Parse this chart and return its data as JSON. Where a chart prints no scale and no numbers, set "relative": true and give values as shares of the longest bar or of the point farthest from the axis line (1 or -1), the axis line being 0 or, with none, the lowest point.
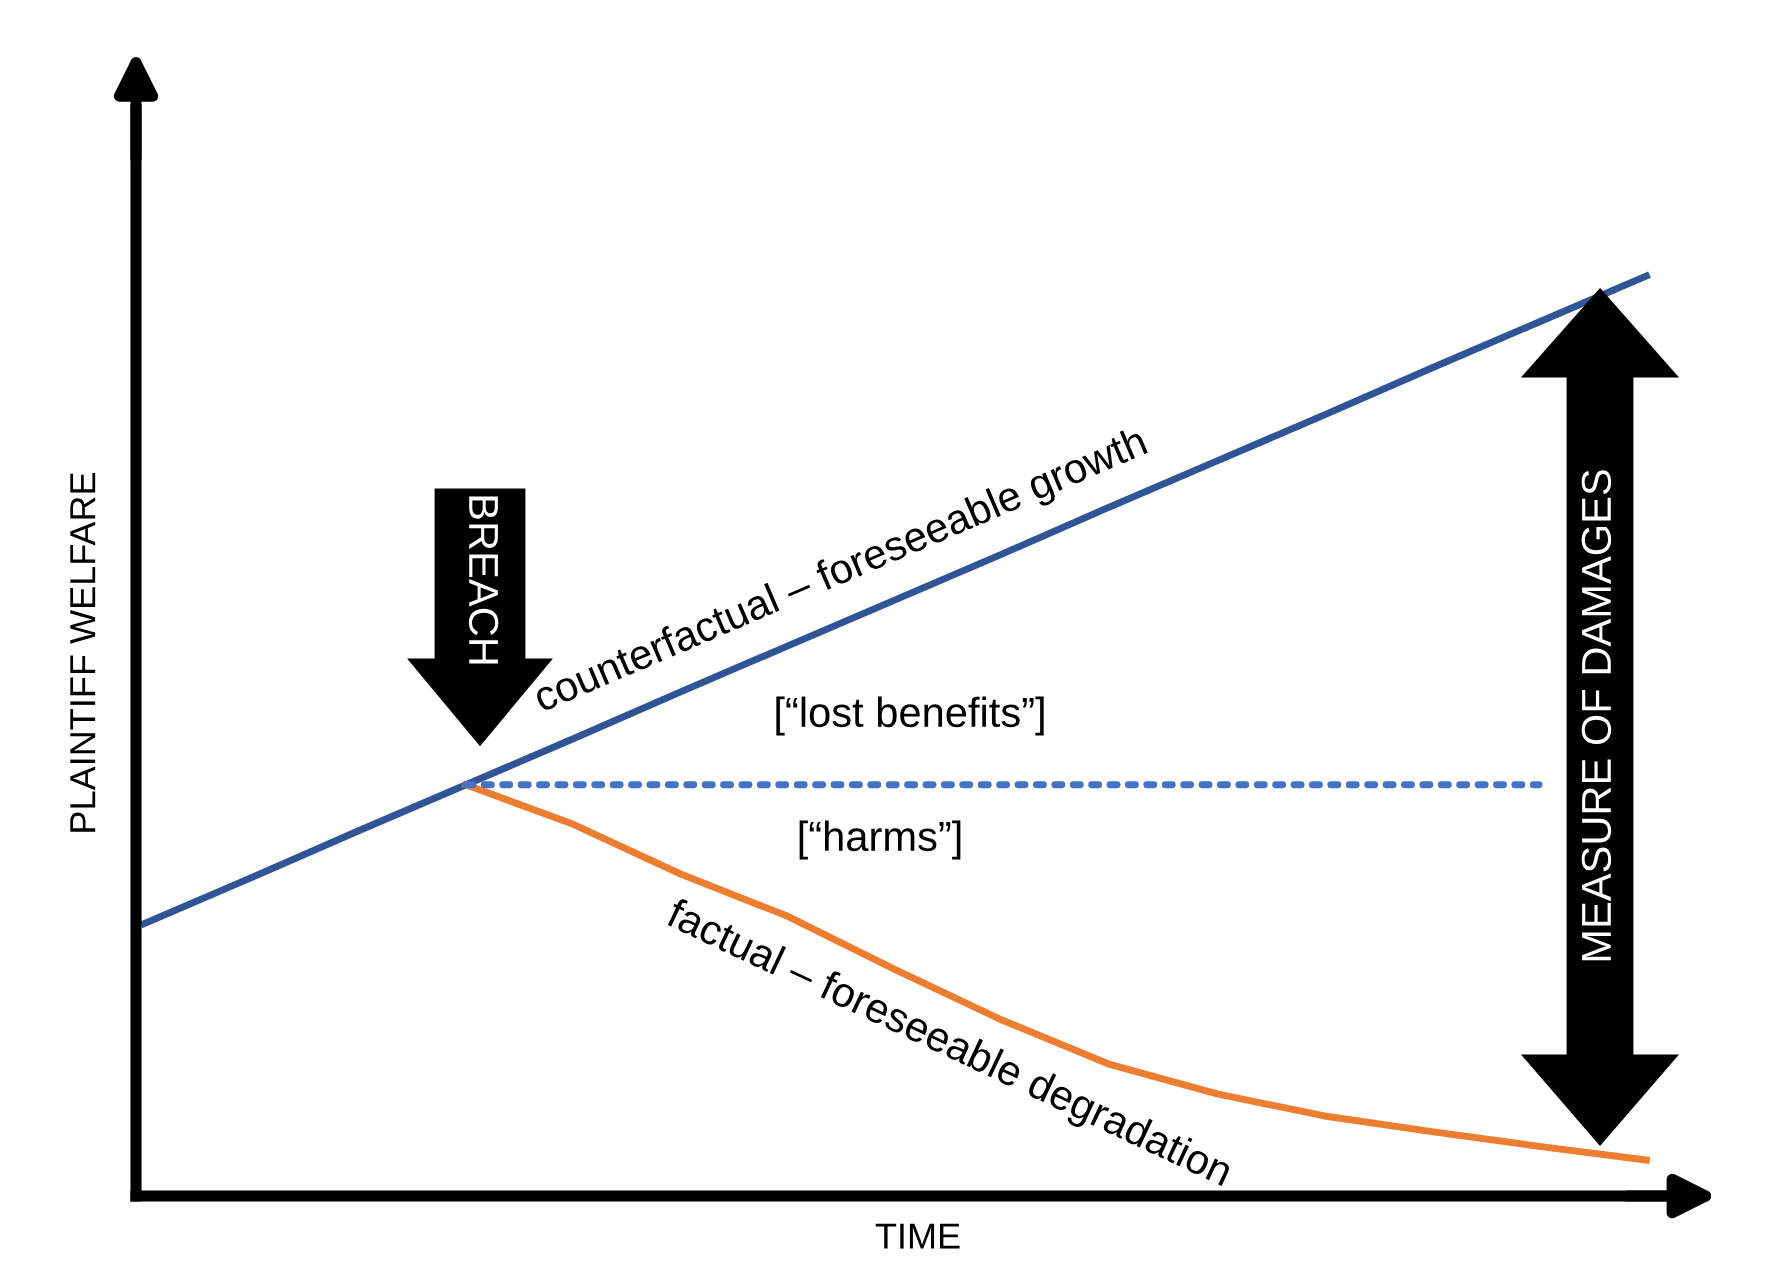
{
  "chart_data": {
    "type": "line",
    "relative": true,
    "xlabel": "TIME",
    "ylabel": "PLAINTIFF WELFARE",
    "categories": [
      null,
      null,
      null,
      null,
      null,
      null,
      null,
      null,
      null,
      null,
      null,
      null,
      null,
      null,
      null
    ],
    "series": [
      {
        "name": "counterfactual – foreseeable growth",
        "color": "#2f5597",
        "values": [
          0.296,
          0.346,
          0.397,
          0.447,
          0.497,
          0.548,
          0.598,
          0.648,
          0.698,
          0.749,
          0.799,
          0.849,
          0.9,
          0.95,
          1.0
        ]
      },
      {
        "name": "factual – foreseeable degradation",
        "color": "#ed7d31",
        "values": [
          null,
          null,
          null,
          0.447,
          0.404,
          0.35,
          0.304,
          0.246,
          0.191,
          0.143,
          0.111,
          0.087,
          0.07,
          0.054,
          0.039
        ]
      },
      {
        "color": "#4472c4",
        "line_style": "dotted",
        "values": [
          null,
          null,
          null,
          0.447,
          0.447,
          0.447,
          0.447,
          0.447,
          0.447,
          0.447,
          0.447,
          0.447,
          0.447,
          0.447,
          null
        ]
      }
    ],
    "annotations": [
      "BREACH",
      "MEASURE OF DAMAGES",
      "[“lost benefits”]",
      "[“harms”]"
    ],
    "grid": false,
    "legend": false,
    "marker": "none",
    "line_style": "solid"
  }
}
